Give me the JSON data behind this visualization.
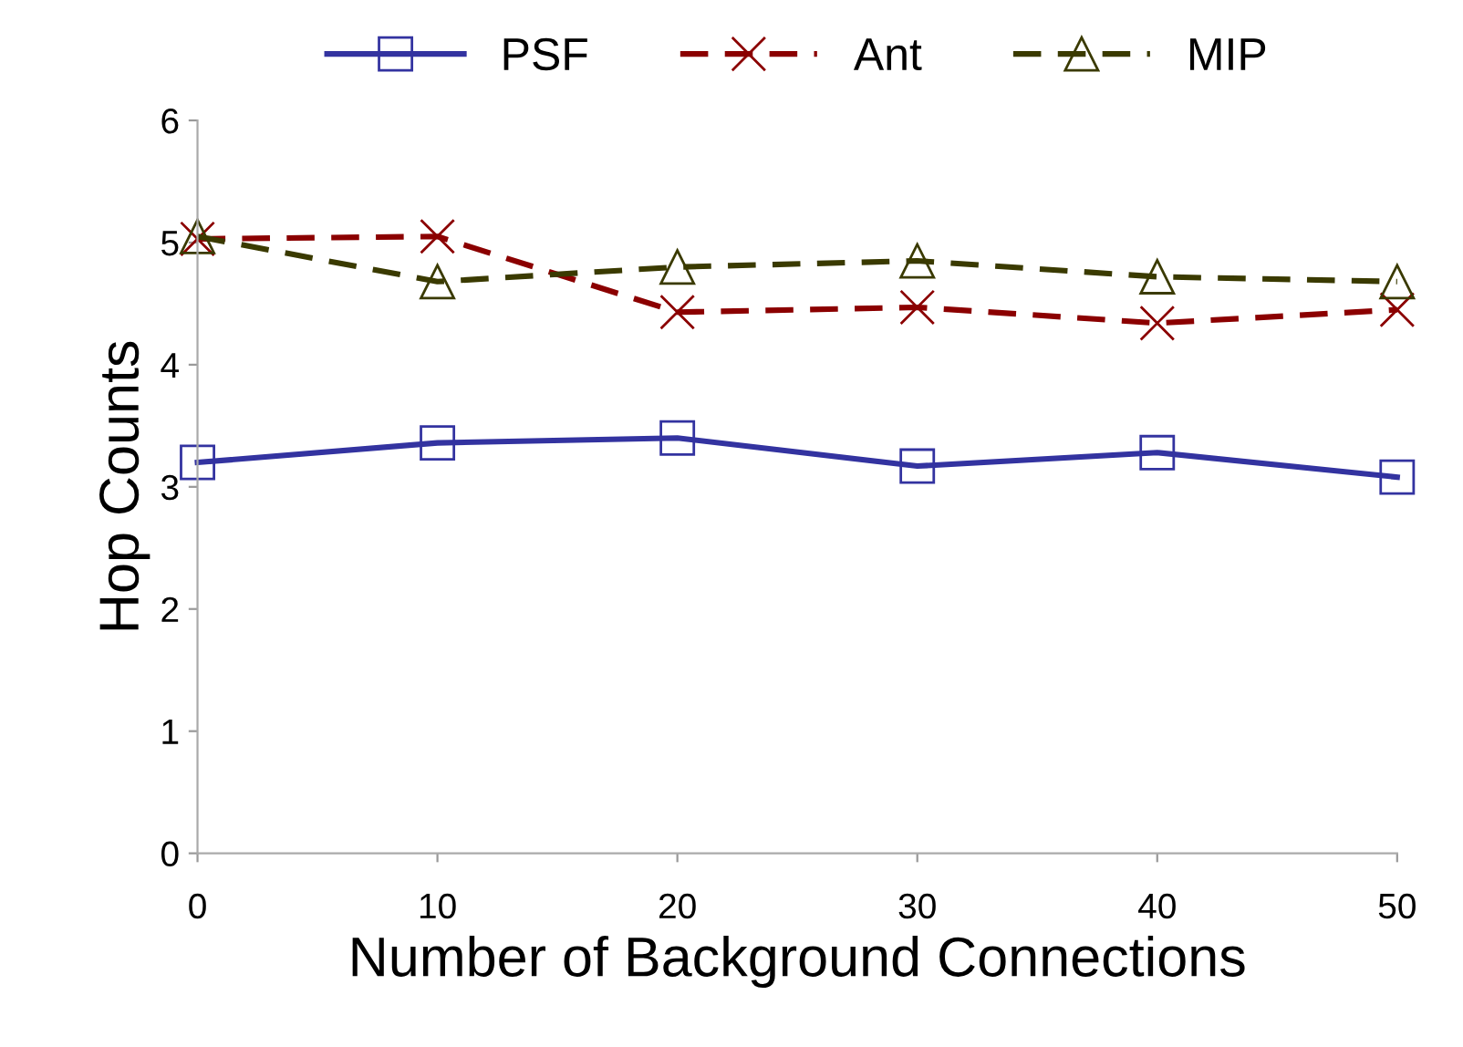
{
  "chart_data": {
    "type": "line",
    "xlabel": "Number of Background Connections",
    "ylabel": "Hop Counts",
    "x": [
      0,
      10,
      20,
      30,
      40,
      50
    ],
    "xlim": [
      0,
      50
    ],
    "xticks": [
      0,
      10,
      20,
      30,
      40,
      50
    ],
    "ylim": [
      0,
      6
    ],
    "yticks": [
      0,
      1,
      2,
      3,
      4,
      5,
      6
    ],
    "grid": false,
    "legend": "top",
    "series": [
      {
        "name": "PSF",
        "color": "#3333a0",
        "values": [
          3.2,
          3.36,
          3.4,
          3.17,
          3.28,
          3.08
        ],
        "marker": "square",
        "line_style": "solid"
      },
      {
        "name": "Ant",
        "color": "#8b0000",
        "values": [
          5.03,
          5.05,
          4.43,
          4.47,
          4.34,
          4.45
        ],
        "marker": "cross",
        "line_style": "dashed"
      },
      {
        "name": "MIP",
        "color": "#3a3a00",
        "values": [
          5.05,
          4.68,
          4.8,
          4.85,
          4.72,
          4.68
        ],
        "marker": "triangle",
        "line_style": "dashed"
      }
    ]
  }
}
